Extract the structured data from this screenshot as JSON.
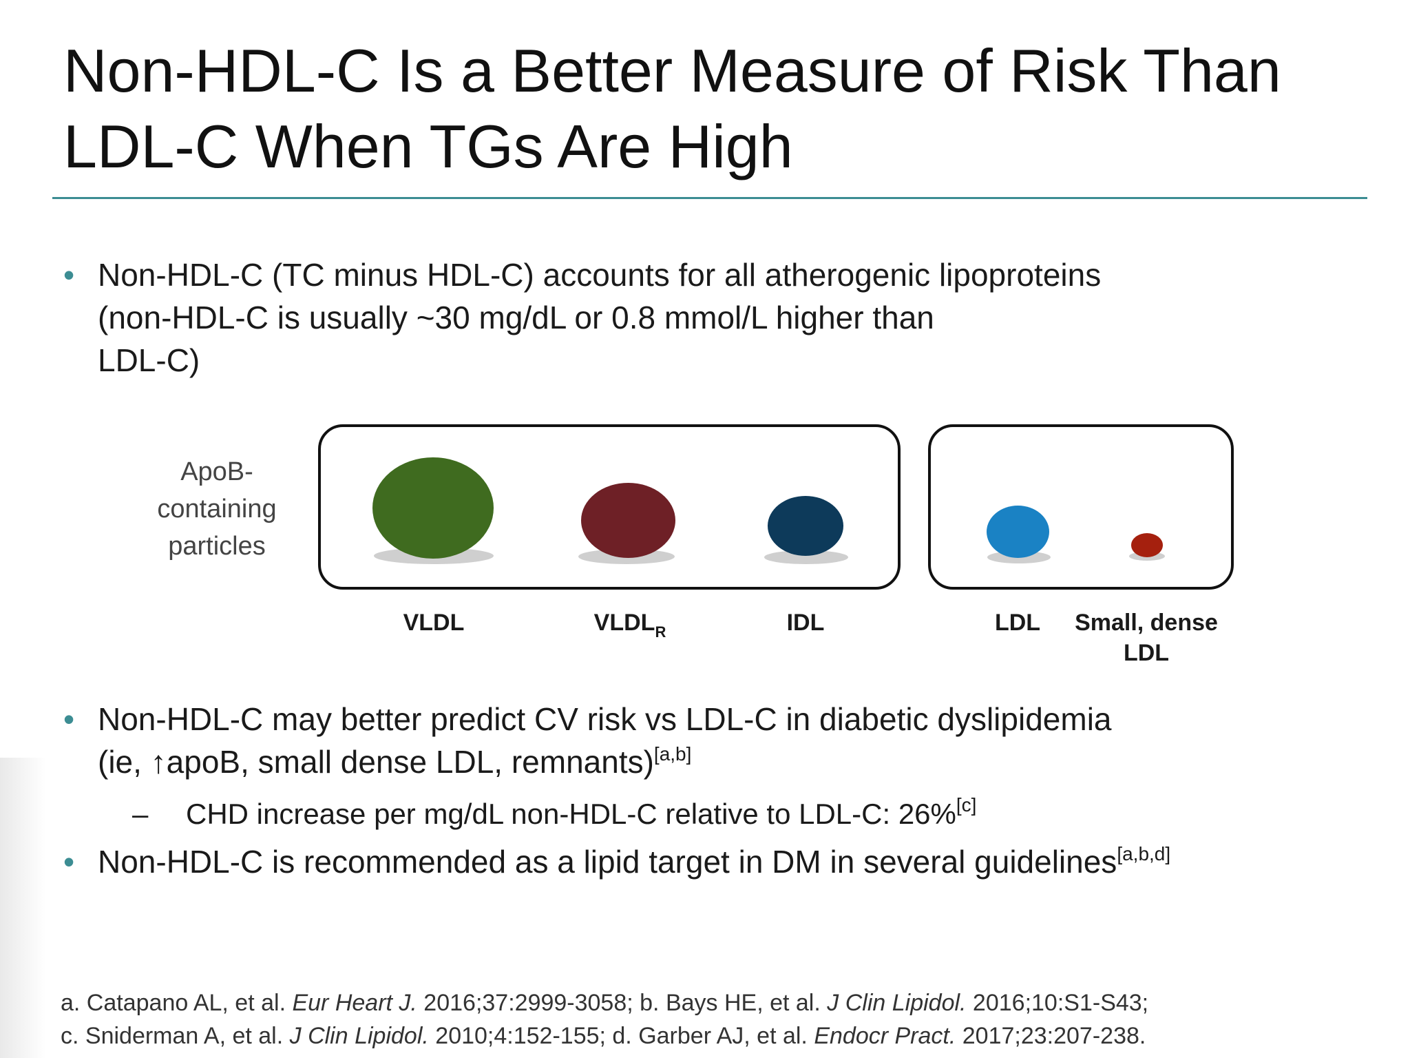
{
  "title": {
    "line1": "Non-HDL-C Is a Better Measure of Risk Than",
    "line2": "LDL-C When TGs Are High"
  },
  "bullets": {
    "b1": {
      "line1": "Non-HDL-C (TC minus HDL-C) accounts for all atherogenic lipoproteins",
      "line2": "(non-HDL-C is usually ~30 mg/dL or 0.8 mmol/L higher than",
      "line3": "LDL-C)"
    },
    "b2": {
      "line1": "Non-HDL-C may better predict CV risk vs LDL-C in diabetic dyslipidemia",
      "line2": "(ie, ↑apoB, small dense LDL, remnants)",
      "ref": "[a,b]"
    },
    "sub1": {
      "dash": "–",
      "text": "CHD increase per mg/dL non-HDL-C relative to LDL-C: 26%",
      "ref": "[c]"
    },
    "b3": {
      "text": "Non-HDL-C is recommended as a lipid target in DM in several guidelines",
      "ref": "[a,b,d]"
    },
    "bullet_char": "•"
  },
  "figure": {
    "side_label": {
      "line1": "ApoB-",
      "line2": "containing",
      "line3": "particles"
    },
    "particles": [
      {
        "label": "VLDL",
        "color": "#3f6b1f"
      },
      {
        "label": "VLDL",
        "sub": "R",
        "color": "#6e2026"
      },
      {
        "label": "IDL",
        "color": "#0d3a5a"
      },
      {
        "label": "LDL",
        "color": "#1a82c4"
      },
      {
        "label_line1": "Small, dense",
        "label_line2": "LDL",
        "color": "#a5200e"
      }
    ],
    "shadow_color": "#cfcfcf",
    "box_border_color": "#111111"
  },
  "references": {
    "line1": {
      "a1": "a. Catapano AL, et al. ",
      "a_journal": "Eur Heart J.",
      "a2": " 2016;37:2999-3058; b. Bays HE, et al. ",
      "b_journal": "J Clin Lipidol.",
      "b2": " 2016;10:S1-S43;"
    },
    "line2": {
      "c1": "c. Sniderman A, et al. ",
      "c_journal": "J Clin Lipidol.",
      "c2": " 2010;4:152-155; d. Garber AJ, et al. ",
      "d_journal": "Endocr Pract.",
      "d2": " 2017;23:207-238."
    }
  },
  "colors": {
    "accent": "#3c8d93",
    "text": "#1a1a1a"
  }
}
